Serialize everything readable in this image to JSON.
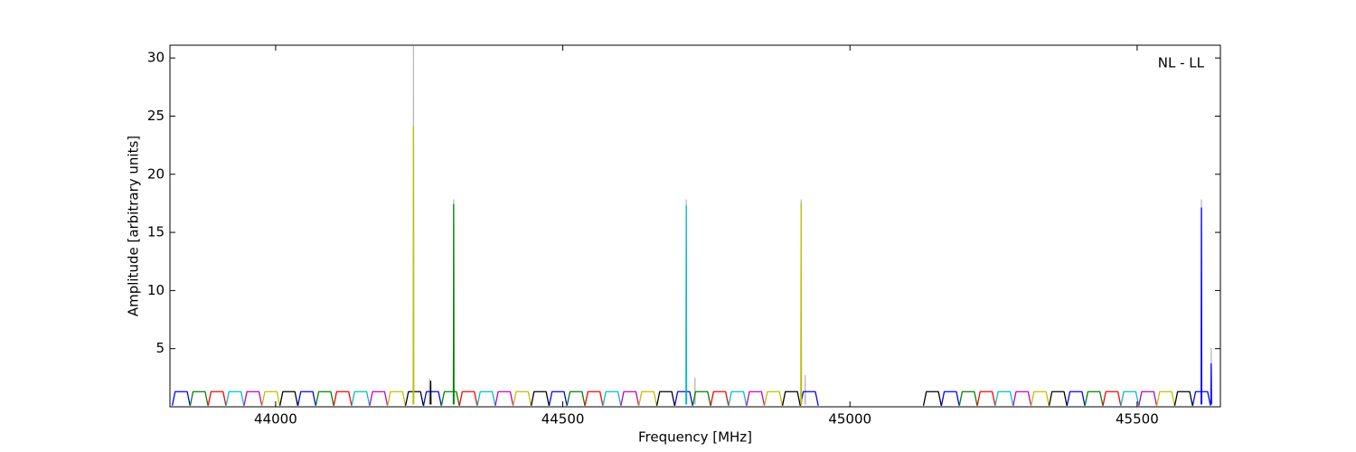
{
  "chart_data": {
    "type": "line",
    "annotation": "NL - LL",
    "xlabel": "Frequency [MHz]",
    "ylabel": "Amplitude [arbitrary units]",
    "xlim": [
      43816,
      45645
    ],
    "ylim": [
      0,
      31.1
    ],
    "xticks": [
      44000,
      44500,
      45000,
      45500
    ],
    "yticks": [
      5,
      10,
      15,
      20,
      25,
      30
    ],
    "grid": false,
    "series": [
      {
        "color": "#bbbbbb",
        "x": [
          44239.5,
          44240,
          44240.5,
          null,
          44267.5,
          44268,
          44268.5,
          null,
          44309.5,
          44310,
          44310.5,
          null,
          44714.5,
          44715,
          44715.5,
          null,
          44729.5,
          44730,
          44730.5,
          null,
          44914.5,
          44915,
          44915.5,
          null,
          44921.5,
          44922,
          44922.5,
          null,
          45611.5,
          45612,
          45612.5,
          null,
          45628.5,
          45629,
          45629.5
        ],
        "values": [
          0.2,
          31,
          0.2,
          null,
          0.2,
          2.4,
          0.2,
          null,
          0.2,
          17.8,
          0.2,
          null,
          0.2,
          17.8,
          0.2,
          null,
          0.2,
          2.5,
          0.2,
          null,
          0.2,
          17.8,
          0.2,
          null,
          0.2,
          2.7,
          0.2,
          null,
          0.2,
          17.8,
          0.2,
          null,
          0.2,
          5.0,
          0.2
        ]
      },
      {
        "color": "#0000ff",
        "x": [
          43820,
          43825,
          43846,
          43851,
          null,
          44038.75,
          44043.75,
          44064.75,
          44069.75,
          null,
          44257.5,
          44262.5,
          44283.5,
          44288.5,
          null,
          44476.25,
          44481.25,
          44502.25,
          44507.25,
          null,
          44695,
          44700,
          44721,
          44726,
          null,
          44913.75,
          44918.75,
          44939.75,
          44944.75,
          null,
          45159.25,
          45164.25,
          45185.25,
          45190.25,
          null,
          45378,
          45383,
          45404,
          45409,
          null,
          45596.75,
          45601.75,
          45622.75,
          45627.75
        ],
        "values": [
          0.1,
          1.3,
          1.3,
          0.1,
          null,
          0.1,
          1.3,
          1.3,
          0.1,
          null,
          0.1,
          1.3,
          1.3,
          0.1,
          null,
          0.1,
          1.3,
          1.3,
          0.1,
          null,
          0.1,
          1.3,
          1.3,
          0.1,
          null,
          0.1,
          1.3,
          1.3,
          0.1,
          null,
          0.1,
          1.3,
          1.3,
          0.1,
          null,
          0.1,
          1.3,
          1.3,
          0.1,
          null,
          0.1,
          1.3,
          1.3,
          0.1
        ]
      },
      {
        "color": "#008000",
        "x": [
          43851.25,
          43856.25,
          43877.25,
          43882.25,
          null,
          44070,
          44075,
          44096,
          44101,
          null,
          44288.75,
          44293.75,
          44314.75,
          44319.75,
          null,
          44507.5,
          44512.5,
          44533.5,
          44538.5,
          null,
          44726.25,
          44731.25,
          44752.25,
          44757.25,
          null,
          45190.5,
          45195.5,
          45216.5,
          45221.5,
          null,
          45409.25,
          45414.25,
          45435.25,
          45440.25
        ],
        "values": [
          0.1,
          1.3,
          1.3,
          0.1,
          null,
          0.1,
          1.3,
          1.3,
          0.1,
          null,
          0.1,
          1.3,
          1.3,
          0.1,
          null,
          0.1,
          1.3,
          1.3,
          0.1,
          null,
          0.1,
          1.3,
          1.3,
          0.1,
          null,
          0.1,
          1.3,
          1.3,
          0.1,
          null,
          0.1,
          1.3,
          1.3,
          0.1
        ]
      },
      {
        "color": "#ff0000",
        "x": [
          43882.5,
          43887.5,
          43908.5,
          43913.5,
          null,
          44101.25,
          44106.25,
          44127.25,
          44132.25,
          null,
          44320,
          44325,
          44346,
          44351,
          null,
          44538.75,
          44543.75,
          44564.75,
          44569.75,
          null,
          44757.5,
          44762.5,
          44783.5,
          44788.5,
          null,
          45221.75,
          45226.75,
          45247.75,
          45252.75,
          null,
          45440.5,
          45445.5,
          45466.5,
          45471.5
        ],
        "values": [
          0.1,
          1.3,
          1.3,
          0.1,
          null,
          0.1,
          1.3,
          1.3,
          0.1,
          null,
          0.1,
          1.3,
          1.3,
          0.1,
          null,
          0.1,
          1.3,
          1.3,
          0.1,
          null,
          0.1,
          1.3,
          1.3,
          0.1,
          null,
          0.1,
          1.3,
          1.3,
          0.1,
          null,
          0.1,
          1.3,
          1.3,
          0.1
        ]
      },
      {
        "color": "#00bfbf",
        "x": [
          43913.75,
          43918.75,
          43939.75,
          43944.75,
          null,
          44132.5,
          44137.5,
          44158.5,
          44163.5,
          null,
          44351.25,
          44356.25,
          44377.25,
          44382.25,
          null,
          44570,
          44575,
          44596,
          44601,
          null,
          44788.75,
          44793.75,
          44814.75,
          44819.75,
          null,
          45253,
          45258,
          45279,
          45284,
          null,
          45471.75,
          45476.75,
          45497.75,
          45502.75
        ],
        "values": [
          0.1,
          1.3,
          1.3,
          0.1,
          null,
          0.1,
          1.3,
          1.3,
          0.1,
          null,
          0.1,
          1.3,
          1.3,
          0.1,
          null,
          0.1,
          1.3,
          1.3,
          0.1,
          null,
          0.1,
          1.3,
          1.3,
          0.1,
          null,
          0.1,
          1.3,
          1.3,
          0.1,
          null,
          0.1,
          1.3,
          1.3,
          0.1
        ]
      },
      {
        "color": "#bf00bf",
        "x": [
          43945,
          43950,
          43971,
          43976,
          null,
          44163.75,
          44168.75,
          44189.75,
          44194.75,
          null,
          44382.5,
          44387.5,
          44408.5,
          44413.5,
          null,
          44601.25,
          44606.25,
          44627.25,
          44632.25,
          null,
          44820,
          44825,
          44846,
          44851,
          null,
          45284.25,
          45289.25,
          45310.25,
          45315.25,
          null,
          45503,
          45508,
          45529,
          45534
        ],
        "values": [
          0.1,
          1.3,
          1.3,
          0.1,
          null,
          0.1,
          1.3,
          1.3,
          0.1,
          null,
          0.1,
          1.3,
          1.3,
          0.1,
          null,
          0.1,
          1.3,
          1.3,
          0.1,
          null,
          0.1,
          1.3,
          1.3,
          0.1,
          null,
          0.1,
          1.3,
          1.3,
          0.1,
          null,
          0.1,
          1.3,
          1.3,
          0.1
        ]
      },
      {
        "color": "#bfbf00",
        "x": [
          43976.25,
          43981.25,
          44002.25,
          44007.25,
          null,
          44195,
          44200,
          44221,
          44226,
          null,
          44413.75,
          44418.75,
          44439.75,
          44444.75,
          null,
          44632.5,
          44637.5,
          44658.5,
          44663.5,
          null,
          44851.25,
          44856.25,
          44877.25,
          44882.25,
          null,
          45315.5,
          45320.5,
          45341.5,
          45346.5,
          null,
          45534.25,
          45539.25,
          45560.25,
          45565.25
        ],
        "values": [
          0.1,
          1.3,
          1.3,
          0.1,
          null,
          0.1,
          1.3,
          1.3,
          0.1,
          null,
          0.1,
          1.3,
          1.3,
          0.1,
          null,
          0.1,
          1.3,
          1.3,
          0.1,
          null,
          0.1,
          1.3,
          1.3,
          0.1,
          null,
          0.1,
          1.3,
          1.3,
          0.1,
          null,
          0.1,
          1.3,
          1.3,
          0.1
        ]
      },
      {
        "color": "#000000",
        "x": [
          44007.5,
          44012.5,
          44033.5,
          44038.5,
          null,
          44226.25,
          44231.25,
          44252.25,
          44257.25,
          null,
          44445,
          44450,
          44471,
          44476,
          null,
          44663.75,
          44668.75,
          44689.75,
          44694.75,
          null,
          44882.5,
          44887.5,
          44908.5,
          44913.5,
          null,
          45128,
          45133,
          45154,
          45159,
          null,
          45346.75,
          45351.75,
          45372.75,
          45377.75,
          null,
          45565.5,
          45570.5,
          45591.5,
          45596.5
        ],
        "values": [
          0.1,
          1.3,
          1.3,
          0.1,
          null,
          0.1,
          1.3,
          1.3,
          0.1,
          null,
          0.1,
          1.3,
          1.3,
          0.1,
          null,
          0.1,
          1.3,
          1.3,
          0.1,
          null,
          0.1,
          1.3,
          1.3,
          0.1,
          null,
          0.1,
          1.3,
          1.3,
          0.1,
          null,
          0.1,
          1.3,
          1.3,
          0.1,
          null,
          0.1,
          1.3,
          1.3,
          0.1
        ]
      },
      {
        "color": "#bfbf00",
        "x": [
          44239.5,
          44240,
          44240.5,
          null,
          44914.5,
          44915,
          44915.5
        ],
        "values": [
          0.2,
          24.1,
          0.2,
          null,
          0.2,
          17.5,
          0.2
        ]
      },
      {
        "color": "#000000",
        "x": [
          44269.5,
          44270,
          44270.5
        ],
        "values": [
          0.2,
          2.2,
          0.2
        ]
      },
      {
        "color": "#008000",
        "x": [
          44309.5,
          44310,
          44310.5
        ],
        "values": [
          0.2,
          17.4,
          0.2
        ]
      },
      {
        "color": "#00bfbf",
        "x": [
          44714.5,
          44715,
          44715.5
        ],
        "values": [
          0.2,
          17.3,
          0.2
        ]
      },
      {
        "color": "#0000ff",
        "x": [
          45611.5,
          45612,
          45612.5,
          null,
          45628.5,
          45629,
          45629.5
        ],
        "values": [
          0.2,
          17.1,
          0.2,
          null,
          0.2,
          3.7,
          0.2
        ]
      }
    ]
  }
}
